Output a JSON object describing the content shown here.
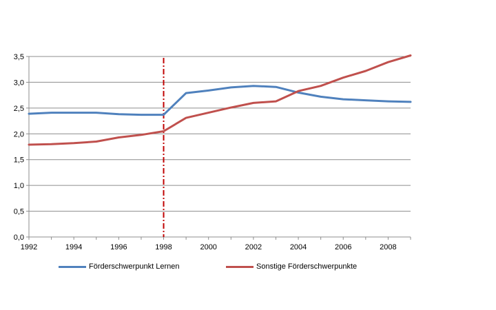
{
  "chart_data": {
    "type": "line",
    "title": "",
    "xlabel": "",
    "ylabel": "",
    "x": [
      1992,
      1993,
      1994,
      1995,
      1996,
      1997,
      1998,
      1999,
      2000,
      2001,
      2002,
      2003,
      2004,
      2005,
      2006,
      2007,
      2008,
      2009
    ],
    "xlim": [
      1992,
      2009
    ],
    "ylim": [
      0,
      3.5
    ],
    "x_tick_labels": [
      "1992",
      "1994",
      "1996",
      "1998",
      "2000",
      "2002",
      "2004",
      "2006",
      "2008"
    ],
    "y_tick_labels": [
      "0,0",
      "0,5",
      "1,0",
      "1,5",
      "2,0",
      "2,5",
      "3,0",
      "3,5"
    ],
    "grid": "horizontal",
    "legend_position": "bottom",
    "reference_line": {
      "x": 1998,
      "color": "#C00000",
      "style": "dash-dot"
    },
    "series": [
      {
        "name": "Förderschwerpunkt Lernen",
        "color": "#4F81BD",
        "values": [
          2.39,
          2.41,
          2.41,
          2.41,
          2.38,
          2.37,
          2.37,
          2.79,
          2.84,
          2.9,
          2.93,
          2.91,
          2.8,
          2.72,
          2.67,
          2.65,
          2.63,
          2.62
        ]
      },
      {
        "name": "Sonstige Förderschwerpunkte",
        "color": "#C0504D",
        "values": [
          1.79,
          1.8,
          1.82,
          1.85,
          1.93,
          1.98,
          2.05,
          2.31,
          2.41,
          2.51,
          2.6,
          2.63,
          2.83,
          2.93,
          3.09,
          3.22,
          3.39,
          3.52
        ]
      }
    ]
  }
}
